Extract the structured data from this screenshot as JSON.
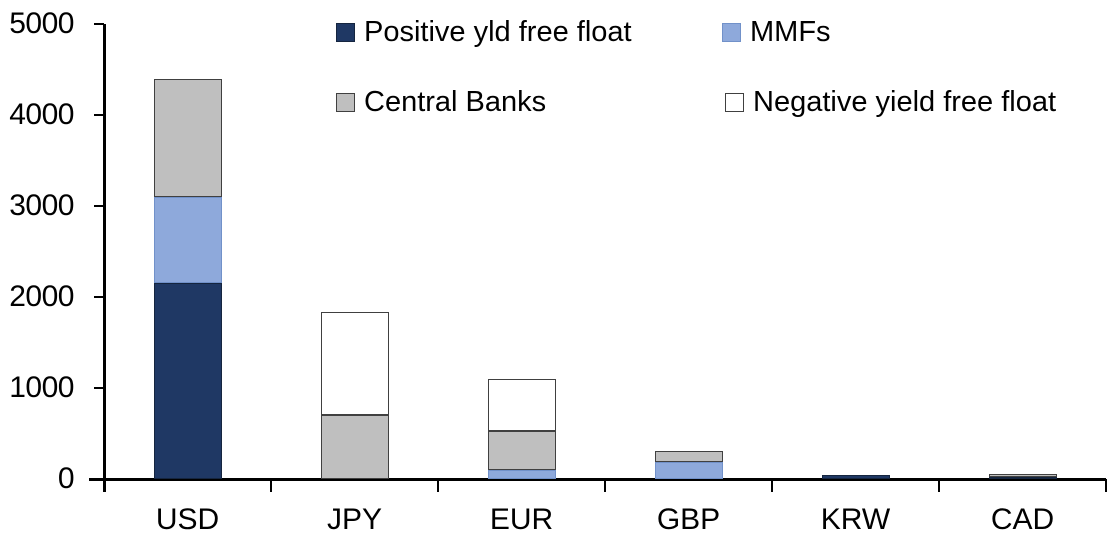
{
  "chart_data": {
    "type": "bar",
    "stacked": true,
    "title": "",
    "xlabel": "",
    "ylabel": "",
    "categories": [
      "USD",
      "JPY",
      "EUR",
      "GBP",
      "KRW",
      "CAD"
    ],
    "series": [
      {
        "name": "Positive yld free float",
        "color": "#1F3864",
        "border_color": "#15253F",
        "values": [
          2150,
          0,
          0,
          0,
          45,
          25
        ]
      },
      {
        "name": "MMFs",
        "color": "#8EA9DB",
        "border_color": "#7191C9",
        "values": [
          950,
          0,
          100,
          185,
          0,
          0
        ]
      },
      {
        "name": "Central Banks",
        "color": "#BFBFBF",
        "border_color": "#404040",
        "values": [
          1300,
          700,
          430,
          125,
          0,
          30
        ]
      },
      {
        "name": "Negative yield free float",
        "color": "#FFFFFF",
        "border_color": "#404040",
        "values": [
          0,
          1140,
          570,
          0,
          0,
          0
        ]
      }
    ],
    "ylim": [
      0,
      5000
    ],
    "yticks": [
      0,
      1000,
      2000,
      3000,
      4000,
      5000
    ],
    "legend_position": "top",
    "grid": false,
    "axis_color": "#000000"
  }
}
